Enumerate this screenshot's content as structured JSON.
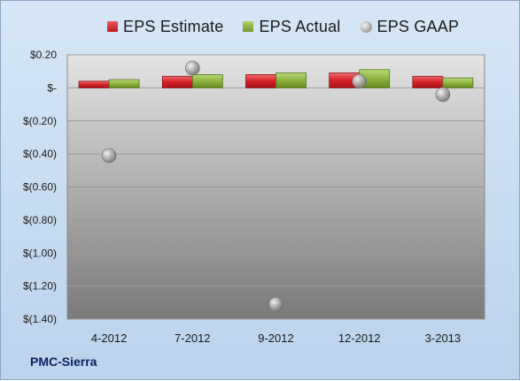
{
  "chart_data": {
    "type": "bar",
    "company": "PMC-Sierra",
    "categories": [
      "4-2012",
      "7-2012",
      "9-2012",
      "12-2012",
      "3-2013"
    ],
    "series": [
      {
        "name": "EPS Estimate",
        "kind": "bar",
        "color": "#d42127",
        "values": [
          0.04,
          0.07,
          0.08,
          0.09,
          0.07
        ]
      },
      {
        "name": "EPS Actual",
        "kind": "bar",
        "color": "#8db33e",
        "values": [
          0.05,
          0.08,
          0.09,
          0.11,
          0.06
        ]
      },
      {
        "name": "EPS GAAP",
        "kind": "marker",
        "color": "#a7a7a7",
        "values": [
          -0.41,
          0.12,
          -1.31,
          0.04,
          -0.04
        ]
      }
    ],
    "ylim": [
      -1.4,
      0.2
    ],
    "yticks": [
      0.2,
      0,
      -0.2,
      -0.4,
      -0.6,
      -0.8,
      -1.0,
      -1.2,
      -1.4
    ],
    "ytick_labels": [
      "$0.20",
      "$-",
      "$(0.20)",
      "$(0.40)",
      "$(0.60)",
      "$(0.80)",
      "$(1.00)",
      "$(1.20)",
      "$(1.40)"
    ],
    "grid": true,
    "legend_position": "top"
  }
}
